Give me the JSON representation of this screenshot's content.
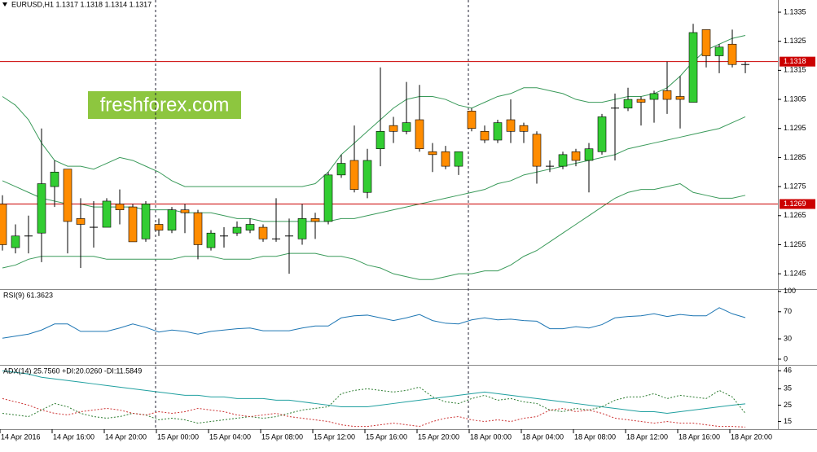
{
  "watermark": "freshforex.com",
  "chart_data": [
    {
      "type": "candlestick",
      "title": "EURUSD,H1  1.1317 1.1318 1.1314 1.1317",
      "categories": [
        "14 Apr 2016",
        null,
        null,
        null,
        "14 Apr 16:00",
        null,
        null,
        null,
        "14 Apr 20:00",
        null,
        null,
        null,
        "15 Apr 00:00",
        null,
        null,
        null,
        "15 Apr 04:00",
        null,
        null,
        null,
        "15 Apr 08:00",
        null,
        null,
        null,
        "15 Apr 12:00",
        null,
        null,
        null,
        "15 Apr 16:00",
        null,
        null,
        null,
        "15 Apr 20:00",
        null,
        null,
        null,
        "18 Apr 00:00",
        null,
        null,
        null,
        "18 Apr 04:00",
        null,
        null,
        null,
        "18 Apr 08:00",
        null,
        null,
        null,
        "18 Apr 12:00",
        null,
        null,
        null,
        "18 Apr 16:00",
        null,
        null,
        null,
        "18 Apr 20:00",
        null
      ],
      "open": [
        1.1269,
        1.1254,
        1.1258,
        1.1259,
        1.1275,
        1.1281,
        1.1264,
        1.1261,
        1.1261,
        1.1269,
        1.1268,
        1.1257,
        1.1262,
        1.126,
        1.1267,
        1.1266,
        1.1254,
        1.1258,
        1.1259,
        1.126,
        1.1261,
        1.1257,
        1.1258,
        1.1257,
        1.1264,
        1.1263,
        1.1279,
        1.1284,
        1.1273,
        1.1288,
        1.1296,
        1.1294,
        1.1298,
        1.1287,
        1.1287,
        1.1282,
        1.1301,
        1.1294,
        1.1291,
        1.1298,
        1.1296,
        1.1293,
        1.1282,
        1.1282,
        1.1287,
        1.1284,
        1.1287,
        1.1302,
        1.1302,
        1.1305,
        1.1305,
        1.1308,
        1.1306,
        1.1304,
        1.1329,
        1.132,
        1.1324,
        1.1317
      ],
      "high": [
        1.1272,
        1.1262,
        1.1265,
        1.1295,
        1.1284,
        1.1281,
        1.1271,
        1.127,
        1.1271,
        1.1274,
        1.1269,
        1.127,
        1.1264,
        1.1268,
        1.1269,
        1.1267,
        1.126,
        1.1261,
        1.1263,
        1.1264,
        1.1262,
        1.1271,
        1.1264,
        1.1269,
        1.1266,
        1.128,
        1.1286,
        1.1296,
        1.1288,
        1.1316,
        1.1299,
        1.1311,
        1.131,
        1.129,
        1.1289,
        1.1287,
        1.1302,
        1.1296,
        1.1298,
        1.1305,
        1.1297,
        1.1294,
        1.1284,
        1.1287,
        1.1288,
        1.129,
        1.13,
        1.1307,
        1.1309,
        1.1306,
        1.1308,
        1.1318,
        1.1313,
        1.1331,
        1.1329,
        1.1324,
        1.1329,
        1.1318
      ],
      "low": [
        1.1253,
        1.1252,
        1.1252,
        1.1249,
        1.1268,
        1.1252,
        1.1247,
        1.1254,
        1.1261,
        1.1262,
        1.1256,
        1.1256,
        1.1258,
        1.1259,
        1.1259,
        1.125,
        1.1253,
        1.1254,
        1.1258,
        1.1259,
        1.1256,
        1.1256,
        1.1245,
        1.1255,
        1.1257,
        1.1262,
        1.1278,
        1.1273,
        1.1271,
        1.1282,
        1.129,
        1.1293,
        1.1287,
        1.128,
        1.1281,
        1.1279,
        1.1294,
        1.129,
        1.129,
        1.129,
        1.129,
        1.1276,
        1.128,
        1.1281,
        1.1282,
        1.1273,
        1.1286,
        1.1284,
        1.1301,
        1.1296,
        1.1297,
        1.13,
        1.1295,
        1.1304,
        1.1316,
        1.1314,
        1.1316,
        1.1314
      ],
      "close": [
        1.1255,
        1.1258,
        1.1258,
        1.1276,
        1.128,
        1.1263,
        1.1262,
        1.1261,
        1.127,
        1.1267,
        1.1256,
        1.1269,
        1.126,
        1.1267,
        1.1266,
        1.1255,
        1.1259,
        1.1258,
        1.1261,
        1.1262,
        1.1257,
        1.1257,
        1.1258,
        1.1264,
        1.1263,
        1.1279,
        1.1283,
        1.1274,
        1.1284,
        1.1294,
        1.1294,
        1.1297,
        1.1288,
        1.1286,
        1.1282,
        1.1287,
        1.1295,
        1.1291,
        1.1297,
        1.1294,
        1.1294,
        1.1282,
        1.1282,
        1.1286,
        1.1284,
        1.1288,
        1.1299,
        1.1302,
        1.1305,
        1.1304,
        1.1307,
        1.1305,
        1.1305,
        1.1328,
        1.132,
        1.1323,
        1.1317,
        1.1317
      ],
      "up_color": "#32cd32",
      "down_color": "#ff8c00",
      "series": [
        {
          "color": "#3a9a5a",
          "values": [
            1.1306,
            1.1303,
            1.1298,
            1.129,
            1.1284,
            1.1282,
            1.1282,
            1.1281,
            1.1283,
            1.1285,
            1.1284,
            1.1282,
            1.128,
            1.1277,
            1.1275,
            1.1275,
            1.1275,
            1.1275,
            1.1275,
            1.1275,
            1.1275,
            1.1275,
            1.1275,
            1.1275,
            1.1276,
            1.128,
            1.1286,
            1.129,
            1.1294,
            1.1298,
            1.1302,
            1.1305,
            1.1306,
            1.1306,
            1.1305,
            1.1303,
            1.1302,
            1.1304,
            1.1306,
            1.1307,
            1.1309,
            1.1309,
            1.1308,
            1.1307,
            1.1305,
            1.1304,
            1.1304,
            1.1305,
            1.1306,
            1.1306,
            1.1307,
            1.1309,
            1.1313,
            1.1318,
            1.1322,
            1.1324,
            1.1326,
            1.1327
          ]
        },
        {
          "color": "#3a9a5a",
          "values": [
            1.1277,
            1.1275,
            1.1273,
            1.1271,
            1.127,
            1.1269,
            1.1269,
            1.1268,
            1.1268,
            1.1268,
            1.1268,
            1.1267,
            1.1267,
            1.1267,
            1.1266,
            1.1266,
            1.1266,
            1.1265,
            1.1264,
            1.1264,
            1.1263,
            1.1263,
            1.1263,
            1.1263,
            1.1263,
            1.1263,
            1.1264,
            1.1264,
            1.1265,
            1.1266,
            1.1267,
            1.1268,
            1.1269,
            1.127,
            1.1271,
            1.1272,
            1.1273,
            1.1274,
            1.1276,
            1.1277,
            1.1279,
            1.128,
            1.1281,
            1.1282,
            1.1283,
            1.1284,
            1.1285,
            1.1286,
            1.1288,
            1.1289,
            1.129,
            1.1291,
            1.1292,
            1.1293,
            1.1294,
            1.1295,
            1.1297,
            1.1299
          ]
        },
        {
          "color": "#3a9a5a",
          "values": [
            1.1247,
            1.1248,
            1.125,
            1.1251,
            1.1251,
            1.1251,
            1.1251,
            1.1251,
            1.125,
            1.125,
            1.125,
            1.125,
            1.125,
            1.125,
            1.1251,
            1.1251,
            1.1251,
            1.125,
            1.125,
            1.125,
            1.1251,
            1.1251,
            1.1252,
            1.1252,
            1.1252,
            1.1251,
            1.1251,
            1.125,
            1.1248,
            1.1247,
            1.1245,
            1.1244,
            1.1243,
            1.1243,
            1.1244,
            1.1245,
            1.1245,
            1.1246,
            1.1246,
            1.1248,
            1.1251,
            1.1253,
            1.1256,
            1.1259,
            1.1262,
            1.1265,
            1.1268,
            1.1271,
            1.1273,
            1.1274,
            1.1274,
            1.1275,
            1.1276,
            1.1273,
            1.1272,
            1.1271,
            1.1271,
            1.1272
          ]
        }
      ],
      "hlines": [
        1.1318,
        1.1269
      ],
      "hline_color": "#cc0000",
      "ylim": [
        1.124,
        1.13392
      ],
      "yticks": [
        1.1245,
        1.1255,
        1.1265,
        1.1275,
        1.1285,
        1.1295,
        1.1305,
        1.1315,
        1.1325,
        1.1335
      ]
    },
    {
      "type": "line",
      "title": "RSI(9) 61.3623",
      "series": [
        {
          "color": "#1f77b4",
          "values": [
            31,
            34,
            37,
            43,
            52,
            52,
            41,
            41,
            41,
            46,
            52,
            47,
            40,
            43,
            41,
            37,
            41,
            43,
            45,
            46,
            42,
            42,
            42,
            46,
            49,
            49,
            61,
            64,
            65,
            61,
            57,
            61,
            66,
            57,
            53,
            52,
            58,
            61,
            58,
            59,
            57,
            56,
            45,
            45,
            48,
            46,
            51,
            61,
            63,
            64,
            67,
            63,
            66,
            64,
            64,
            76,
            67,
            61.3623
          ]
        }
      ],
      "ylim": [
        -6,
        101
      ],
      "yticks": [
        0,
        30,
        70,
        100
      ]
    },
    {
      "type": "line",
      "title": "ADX(14) 25.7560 +DI:20.0260 -DI:11.5849",
      "series": [
        {
          "color": "#20a0a0",
          "style": "solid",
          "values": [
            46,
            45,
            44,
            42,
            41,
            40,
            39,
            38,
            37,
            36,
            35,
            34,
            33,
            32,
            31,
            31,
            30,
            30,
            29,
            29,
            29,
            28,
            28,
            27,
            26,
            25,
            24,
            24,
            24,
            25,
            26,
            27,
            28,
            29,
            30,
            31,
            32,
            33,
            32,
            31,
            30,
            29,
            28,
            27,
            26,
            25,
            24,
            23,
            22,
            21,
            21,
            20,
            21,
            22,
            23,
            24,
            25,
            25.756
          ]
        },
        {
          "color": "#2e7d32",
          "style": "dotted",
          "values": [
            20,
            19,
            18,
            22,
            26,
            24,
            20,
            18,
            17,
            18,
            20,
            19,
            16,
            17,
            16,
            14,
            15,
            16,
            17,
            18,
            17,
            18,
            20,
            22,
            23,
            24,
            32,
            34,
            35,
            34,
            33,
            34,
            36,
            30,
            27,
            26,
            29,
            31,
            28,
            29,
            27,
            26,
            22,
            21,
            23,
            22,
            24,
            28,
            30,
            30,
            32,
            29,
            31,
            30,
            29,
            34,
            30,
            20.026
          ]
        },
        {
          "color": "#cc3333",
          "style": "dotted",
          "values": [
            29,
            27,
            25,
            22,
            20,
            19,
            21,
            22,
            23,
            22,
            20,
            19,
            21,
            20,
            21,
            23,
            22,
            21,
            19,
            18,
            19,
            20,
            18,
            17,
            16,
            15,
            13,
            12,
            12,
            13,
            14,
            13,
            12,
            15,
            17,
            18,
            16,
            15,
            16,
            15,
            17,
            18,
            22,
            23,
            21,
            22,
            20,
            17,
            16,
            15,
            14,
            15,
            14,
            14,
            13,
            12,
            12,
            11.5849
          ]
        }
      ],
      "ylim": [
        10.3,
        48.6
      ],
      "yticks": [
        15,
        25,
        35,
        46
      ]
    }
  ]
}
